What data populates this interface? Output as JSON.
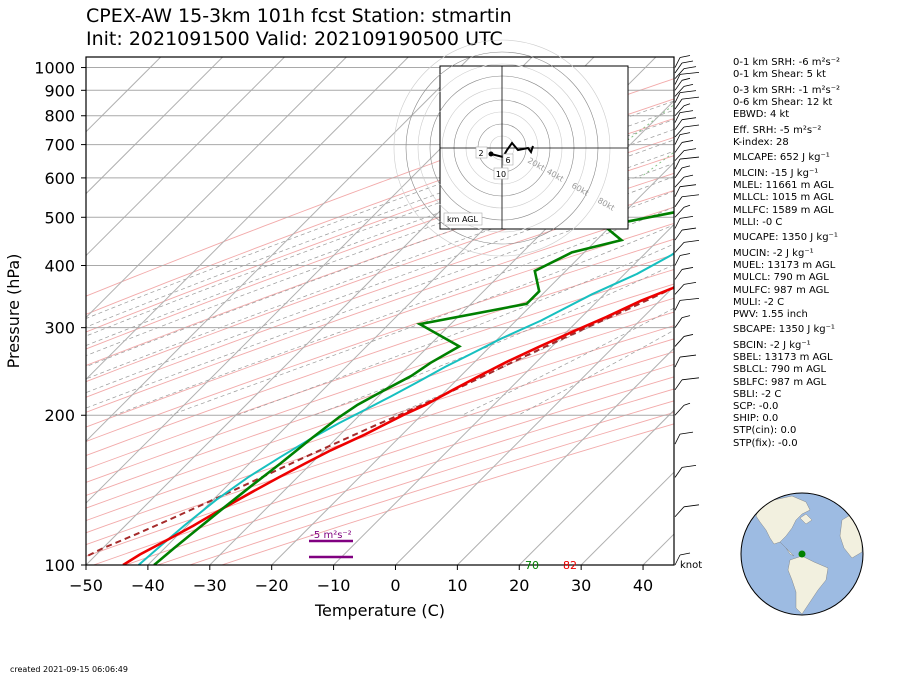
{
  "header": {
    "title_line1": "CPEX-AW 15-3km  101h fcst  Station: stmartin",
    "title_line2": "Init: 2021091500  Valid: 202109190500 UTC"
  },
  "chart_data": {
    "type": "line",
    "subtype": "skew-t log-p",
    "xlabel": "Temperature (C)",
    "ylabel": "Pressure (hPa)",
    "xlim": [
      -50,
      45
    ],
    "ylim": [
      1050,
      100
    ],
    "y_scale": "log",
    "x_ticks": [
      -50,
      -40,
      -30,
      -20,
      -10,
      0,
      10,
      20,
      30,
      40
    ],
    "y_ticks": [
      100,
      200,
      300,
      400,
      500,
      600,
      700,
      800,
      900,
      1000
    ],
    "colors": {
      "temperature": "#ee0000",
      "dewpoint": "#008000",
      "wetbulb": "#17c0c0",
      "parcel": "#a52a2a",
      "srh": "#800080"
    },
    "series": [
      {
        "key": "temperature",
        "points": [
          [
            28.1,
            1012
          ],
          [
            26,
            990
          ],
          [
            23,
            960
          ],
          [
            21.8,
            940
          ],
          [
            20.5,
            910
          ],
          [
            19.5,
            880
          ],
          [
            18.5,
            860
          ],
          [
            17.5,
            840
          ],
          [
            16.2,
            820
          ],
          [
            14.5,
            790
          ],
          [
            13.2,
            765
          ],
          [
            12.3,
            745
          ],
          [
            12.2,
            725
          ],
          [
            14.5,
            700
          ],
          [
            13,
            685
          ],
          [
            11.8,
            670
          ],
          [
            11,
            650
          ],
          [
            10.6,
            620
          ],
          [
            10.3,
            580
          ],
          [
            10.5,
            540
          ],
          [
            10,
            500
          ],
          [
            8.5,
            475
          ],
          [
            6.5,
            440
          ],
          [
            5,
            410
          ],
          [
            2.5,
            380
          ],
          [
            0,
            360
          ],
          [
            -3,
            340
          ],
          [
            -6,
            315
          ],
          [
            -9,
            295
          ],
          [
            -12,
            275
          ],
          [
            -15,
            255
          ],
          [
            -17,
            240
          ],
          [
            -19,
            225
          ],
          [
            -21,
            210
          ],
          [
            -23,
            200
          ],
          [
            -26,
            183
          ],
          [
            -29,
            170
          ],
          [
            -31,
            160
          ],
          [
            -33,
            150
          ],
          [
            -35,
            140
          ],
          [
            -37,
            130
          ],
          [
            -39,
            120
          ],
          [
            -41,
            112
          ],
          [
            -43,
            105
          ],
          [
            -44,
            100
          ]
        ]
      },
      {
        "key": "dewpoint",
        "points": [
          [
            22,
            1012
          ],
          [
            21.8,
            990
          ],
          [
            21,
            960
          ],
          [
            19,
            930
          ],
          [
            16,
            905
          ],
          [
            12.3,
            880
          ],
          [
            11.5,
            870
          ],
          [
            12,
            855
          ],
          [
            13.2,
            845
          ],
          [
            13.3,
            830
          ],
          [
            13.2,
            815
          ],
          [
            13.5,
            800
          ],
          [
            13.2,
            780
          ],
          [
            13.8,
            765
          ],
          [
            13.2,
            750
          ],
          [
            10,
            720
          ],
          [
            5.5,
            680
          ],
          [
            5,
            650
          ],
          [
            3,
            610
          ],
          [
            -1,
            560
          ],
          [
            -11,
            515
          ],
          [
            -21,
            480
          ],
          [
            -16,
            450
          ],
          [
            -22,
            425
          ],
          [
            -25,
            390
          ],
          [
            -21,
            355
          ],
          [
            -21,
            335
          ],
          [
            -35,
            305
          ],
          [
            -25,
            275
          ],
          [
            -27,
            255
          ],
          [
            -28,
            240
          ],
          [
            -30,
            225
          ],
          [
            -32,
            210
          ],
          [
            -33,
            198
          ],
          [
            -34,
            180
          ],
          [
            -35,
            160
          ],
          [
            -36,
            145
          ],
          [
            -37,
            130
          ],
          [
            -38,
            115
          ],
          [
            -38.5,
            108
          ],
          [
            -39,
            100
          ]
        ]
      },
      {
        "key": "wetbulb",
        "points": [
          [
            23.5,
            1012
          ],
          [
            23,
            990
          ],
          [
            22,
            960
          ],
          [
            20,
            930
          ],
          [
            17.5,
            900
          ],
          [
            15,
            875
          ],
          [
            15,
            855
          ],
          [
            15,
            840
          ],
          [
            14.5,
            820
          ],
          [
            14.2,
            800
          ],
          [
            13.5,
            775
          ],
          [
            13,
            750
          ],
          [
            11,
            720
          ],
          [
            8.5,
            690
          ],
          [
            6,
            650
          ],
          [
            3.5,
            610
          ],
          [
            1,
            560
          ],
          [
            -1.5,
            520
          ],
          [
            -2.5,
            490
          ],
          [
            -4,
            460
          ],
          [
            -5.5,
            420
          ],
          [
            -8,
            385
          ],
          [
            -12,
            350
          ],
          [
            -16,
            310
          ],
          [
            -19.5,
            285
          ],
          [
            -22,
            265
          ],
          [
            -24,
            250
          ],
          [
            -26,
            233
          ],
          [
            -28,
            218
          ],
          [
            -30,
            205
          ],
          [
            -32,
            193
          ],
          [
            -34,
            180
          ],
          [
            -36,
            165
          ],
          [
            -38,
            150
          ],
          [
            -39.5,
            135
          ],
          [
            -40.5,
            120
          ],
          [
            -41,
            110
          ],
          [
            -41.5,
            100
          ]
        ]
      },
      {
        "key": "parcel",
        "points": [
          [
            31,
            1012
          ],
          [
            26,
            960
          ],
          [
            24.5,
            935
          ],
          [
            22.5,
            905
          ],
          [
            22,
            880
          ],
          [
            21.5,
            860
          ],
          [
            21,
            840
          ],
          [
            20.5,
            815
          ],
          [
            20,
            790
          ],
          [
            19.5,
            760
          ],
          [
            18.5,
            730
          ],
          [
            17.5,
            700
          ],
          [
            16.5,
            670
          ],
          [
            15.5,
            640
          ],
          [
            14.5,
            610
          ],
          [
            13.5,
            580
          ],
          [
            12.5,
            550
          ],
          [
            11.5,
            520
          ],
          [
            10,
            490
          ],
          [
            8.5,
            460
          ],
          [
            6.5,
            430
          ],
          [
            4.5,
            405
          ],
          [
            2,
            380
          ],
          [
            -1,
            350
          ],
          [
            -4,
            325
          ],
          [
            -7.5,
            300
          ],
          [
            -11,
            275
          ],
          [
            -14,
            255
          ],
          [
            -17,
            235
          ],
          [
            -20,
            218
          ],
          [
            -23,
            203
          ],
          [
            -26,
            190
          ],
          [
            -29,
            177
          ],
          [
            -32,
            165
          ],
          [
            -35,
            153
          ],
          [
            -38,
            142
          ],
          [
            -41,
            132
          ],
          [
            -44,
            123
          ],
          [
            -47,
            115
          ],
          [
            -50,
            108
          ],
          [
            -52,
            102
          ]
        ]
      }
    ],
    "end_labels": {
      "dewpoint": "70",
      "temperature": "82"
    },
    "srh_annotation": "-5 m²s⁻²",
    "barb_unit_label": "knot",
    "hodograph": {
      "ring_labels": [
        "20kt",
        "40kt",
        "60kt",
        "80kt"
      ],
      "height_labels": [
        "2",
        "6",
        "10"
      ],
      "footer": "km AGL"
    }
  },
  "stats": [
    "0-1 km SRH: -6 m²s⁻²",
    "0-1 km Shear: 5 kt",
    "0-3 km SRH: -1 m²s⁻²",
    "0-6 km Shear: 12 kt",
    "EBWD: 4 kt",
    "Eff. SRH: -5 m²s⁻²",
    "K-index: 28",
    "MLCAPE: 652 J kg⁻¹",
    "MLCIN: -15 J kg⁻¹",
    "MLEL: 11661 m AGL",
    "MLLCL: 1015 m AGL",
    "MLLFC: 1589 m AGL",
    "MLLI: -0 C",
    "MUCAPE: 1350 J kg⁻¹",
    "MUCIN: -2 J kg⁻¹",
    "MUEL: 13173 m AGL",
    "MULCL: 790 m AGL",
    "MULFC: 987 m AGL",
    "MULI: -2 C",
    "PWV: 1.55 inch",
    "SBCAPE: 1350 J kg⁻¹",
    "SBCIN: -2 J kg⁻¹",
    "SBEL: 13173 m AGL",
    "SBLCL: 790 m AGL",
    "SBLFC: 987 m AGL",
    "SBLI: -2 C",
    "SCP: -0.0",
    "SHIP: 0.0",
    "STP(cin): 0.0",
    "STP(fix): -0.0"
  ],
  "footer": {
    "created": "created 2021-09-15 06:06:49"
  }
}
